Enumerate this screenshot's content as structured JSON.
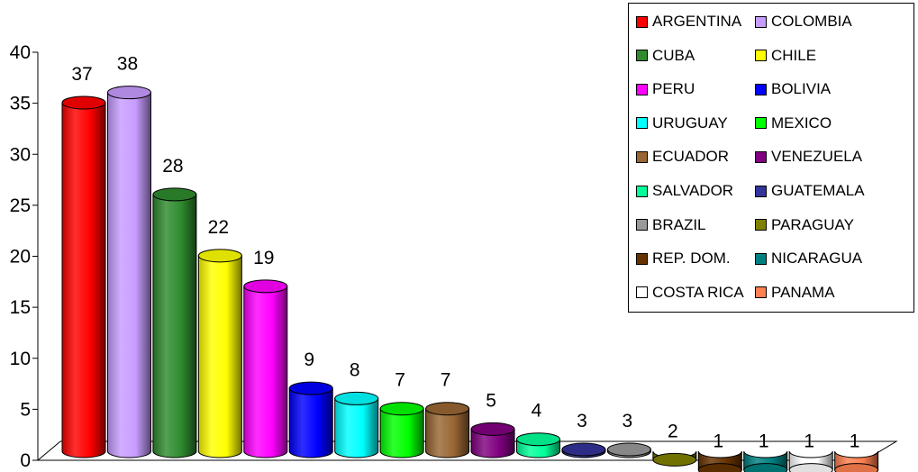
{
  "chart_data": {
    "type": "bar",
    "title": "",
    "xlabel": "",
    "ylabel": "",
    "ylim": [
      0,
      40
    ],
    "yticks": [
      0,
      5,
      10,
      15,
      20,
      25,
      30,
      35,
      40
    ],
    "grid": false,
    "legend_position": "top-right",
    "categories": [
      "ARGENTINA",
      "COLOMBIA",
      "CUBA",
      "CHILE",
      "PERU",
      "BOLIVIA",
      "URUGUAY",
      "MEXICO",
      "ECUADOR",
      "VENEZUELA",
      "SALVADOR",
      "GUATEMALA",
      "BRAZIL",
      "PARAGUAY",
      "REP. DOM.",
      "NICARAGUA",
      "COSTA RICA",
      "PANAMA"
    ],
    "values": [
      37,
      38,
      28,
      22,
      19,
      9,
      8,
      7,
      7,
      5,
      4,
      3,
      3,
      2,
      1,
      1,
      1,
      1
    ],
    "colors": [
      "#ff0000",
      "#c79cff",
      "#2e8b2e",
      "#ffff00",
      "#ff00ff",
      "#0000ff",
      "#00ffff",
      "#00ff00",
      "#996633",
      "#800080",
      "#00ff99",
      "#333399",
      "#999999",
      "#808000",
      "#663300",
      "#008080",
      "#ffffff",
      "#ff7f50"
    ]
  }
}
